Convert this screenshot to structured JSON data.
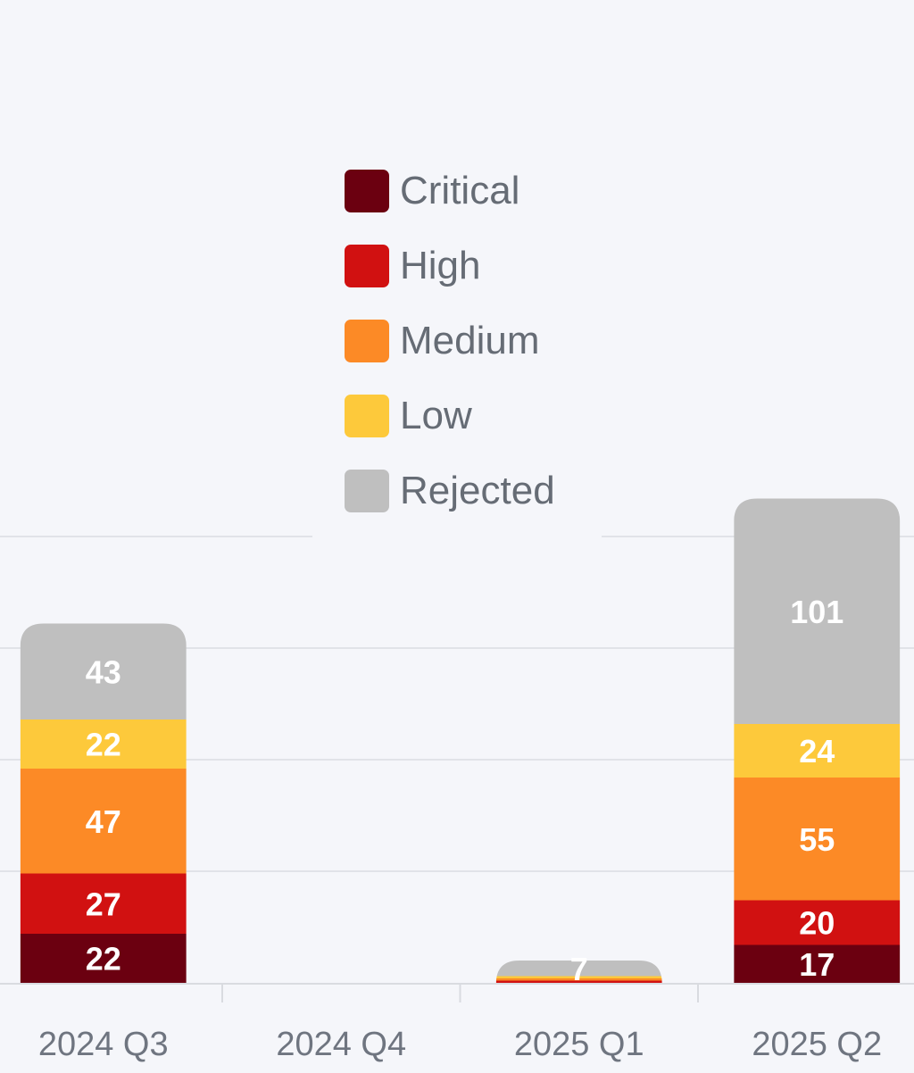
{
  "chart_data": {
    "type": "bar",
    "stacked": true,
    "categories": [
      "2024 Q3",
      "2024 Q4",
      "2025 Q1",
      "2025 Q2"
    ],
    "series": [
      {
        "name": "Critical",
        "color": "#6b0010",
        "values": [
          22,
          0,
          0,
          17
        ]
      },
      {
        "name": "High",
        "color": "#d11111",
        "values": [
          27,
          0,
          1,
          20
        ]
      },
      {
        "name": "Medium",
        "color": "#fc8a26",
        "values": [
          47,
          0,
          1,
          55
        ]
      },
      {
        "name": "Low",
        "color": "#fdc93b",
        "values": [
          22,
          0,
          1,
          24
        ]
      },
      {
        "name": "Rejected",
        "color": "#bfbfbf",
        "values": [
          43,
          0,
          7,
          101
        ]
      }
    ],
    "ylim": [
      0,
      220
    ],
    "grid": true,
    "legend_position": "top-center",
    "title": "",
    "xlabel": "",
    "ylabel": ""
  }
}
